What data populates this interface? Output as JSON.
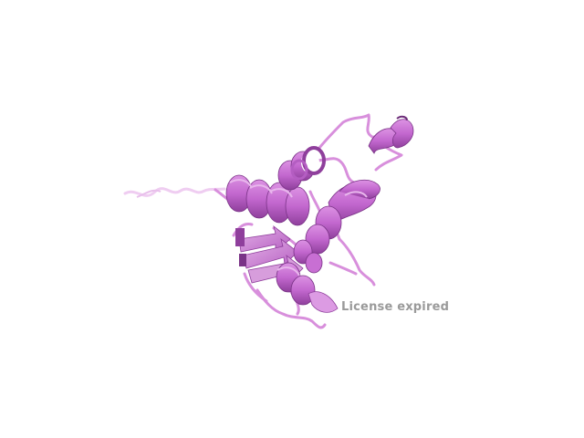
{
  "viewer": {
    "background_color": "#ffffff",
    "molecule_style": "cartoon",
    "molecule_colors": {
      "main": "#c368cf",
      "dark": "#8f3f9c",
      "light": "#e4b2e8",
      "loop": "#d88fdc",
      "tail": "#efcdf1"
    }
  },
  "watermark": {
    "text": "License expired",
    "color": "#9a9a9a"
  }
}
